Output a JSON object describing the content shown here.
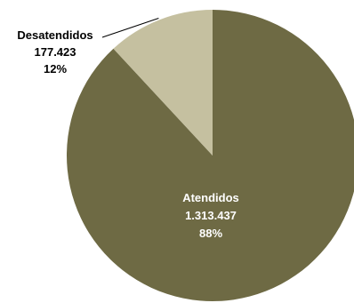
{
  "chart_data": {
    "type": "pie",
    "title": "",
    "slices": [
      {
        "name": "Atendidos",
        "value": 1313437,
        "value_label": "1.313.437",
        "percent_label": "88%",
        "color": "#6e6a44",
        "label_color": "#ffffff"
      },
      {
        "name": "Desatendidos",
        "value": 177423,
        "value_label": "177.423",
        "percent_label": "12%",
        "color": "#c5c0a0",
        "label_color": "#000000"
      }
    ],
    "legend": "none"
  }
}
